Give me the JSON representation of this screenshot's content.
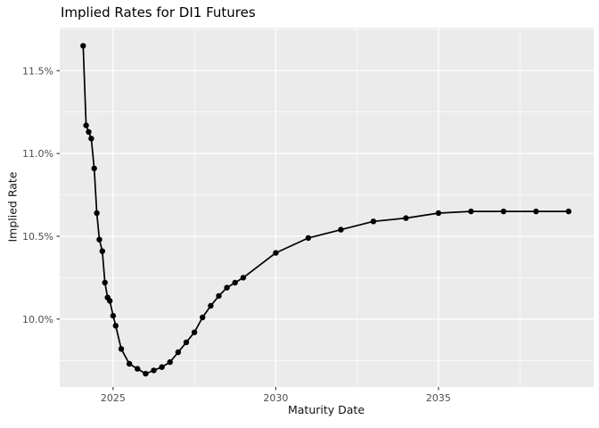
{
  "chart_data": {
    "type": "line",
    "title": "Implied Rates for DI1 Futures",
    "xlabel": "Maturity Date",
    "ylabel": "Implied Rate",
    "xlim": [
      2023.36,
      2039.77
    ],
    "ylim": [
      9.59,
      11.76
    ],
    "grid": "major and minor white gridlines on gray panel",
    "legend_position": "none",
    "x_ticks": {
      "values": [
        2025,
        2030,
        2035
      ],
      "labels": [
        "2025",
        "2030",
        "2035"
      ],
      "minor": [
        2027.5,
        2032.5,
        2037.5
      ]
    },
    "y_ticks": {
      "values": [
        10.0,
        10.5,
        11.0,
        11.5
      ],
      "labels": [
        "10.0%",
        "10.5%",
        "11.0%",
        "11.5%"
      ],
      "minor": [
        9.75,
        10.25,
        10.75,
        11.25,
        11.75
      ]
    },
    "series": [
      {
        "name": "Implied Rate",
        "style": "line+points",
        "color": "#000000",
        "points": [
          [
            2024.08,
            11.65
          ],
          [
            2024.17,
            11.17
          ],
          [
            2024.25,
            11.13
          ],
          [
            2024.33,
            11.09
          ],
          [
            2024.42,
            10.91
          ],
          [
            2024.5,
            10.64
          ],
          [
            2024.58,
            10.48
          ],
          [
            2024.67,
            10.41
          ],
          [
            2024.75,
            10.22
          ],
          [
            2024.83,
            10.13
          ],
          [
            2024.9,
            10.11
          ],
          [
            2025.0,
            10.02
          ],
          [
            2025.08,
            9.96
          ],
          [
            2025.25,
            9.82
          ],
          [
            2025.5,
            9.73
          ],
          [
            2025.75,
            9.7
          ],
          [
            2026.0,
            9.67
          ],
          [
            2026.25,
            9.69
          ],
          [
            2026.5,
            9.71
          ],
          [
            2026.75,
            9.74
          ],
          [
            2027.0,
            9.8
          ],
          [
            2027.25,
            9.86
          ],
          [
            2027.5,
            9.92
          ],
          [
            2027.75,
            10.01
          ],
          [
            2028.0,
            10.08
          ],
          [
            2028.25,
            10.14
          ],
          [
            2028.5,
            10.19
          ],
          [
            2028.75,
            10.22
          ],
          [
            2029.0,
            10.25
          ],
          [
            2030.0,
            10.4
          ],
          [
            2031.0,
            10.49
          ],
          [
            2032.0,
            10.54
          ],
          [
            2033.0,
            10.59
          ],
          [
            2034.0,
            10.61
          ],
          [
            2035.0,
            10.64
          ],
          [
            2036.0,
            10.65
          ],
          [
            2037.0,
            10.65
          ],
          [
            2038.0,
            10.65
          ],
          [
            2039.0,
            10.65
          ]
        ]
      }
    ],
    "colors": {
      "outer_background": "#FFFFFF",
      "panel_background": "#EBEBEB",
      "gridline": "#FFFFFF",
      "tick_mark": "#333333",
      "tick_label_text": "#4D4D4D",
      "axis_title_text": "#111111",
      "title_text": "#000000",
      "series": "#000000"
    }
  }
}
